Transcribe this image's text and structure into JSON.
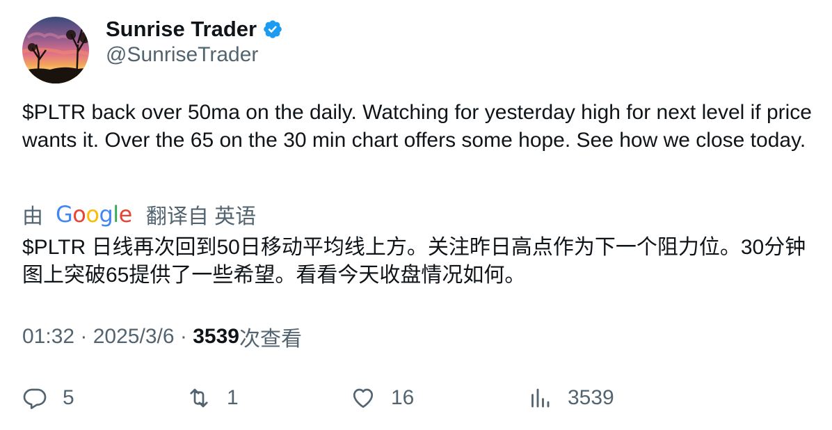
{
  "author": {
    "display_name": "Sunrise Trader",
    "handle": "@SunriseTrader",
    "verified": true,
    "verified_color": "#1d9bf0"
  },
  "tweet": {
    "text": "$PLTR back over 50ma on the daily.  Watching for yesterday high for next level if price wants it.  Over the 65 on the 30 min chart offers some hope.  See how we close today."
  },
  "translation": {
    "by_label": "由",
    "provider": "Google",
    "from_label": "翻译自 英语",
    "text": "$PLTR 日线再次回到50日移动平均线上方。关注昨日高点作为下一个阻力位。30分钟图上突破65提供了一些希望。看看今天收盘情况如何。"
  },
  "meta": {
    "time": "01:32",
    "separator": " · ",
    "date": "2025/3/6",
    "views_count": "3539",
    "views_label": "次查看"
  },
  "actions": {
    "replies": "5",
    "retweets": "1",
    "likes": "16",
    "views": "3539"
  },
  "icons": {
    "reply": "reply-icon",
    "retweet": "retweet-icon",
    "like": "heart-icon",
    "views": "analytics-icon",
    "verified": "verified-badge-icon"
  },
  "colors": {
    "text_primary": "#0f1419",
    "text_secondary": "#536471"
  }
}
